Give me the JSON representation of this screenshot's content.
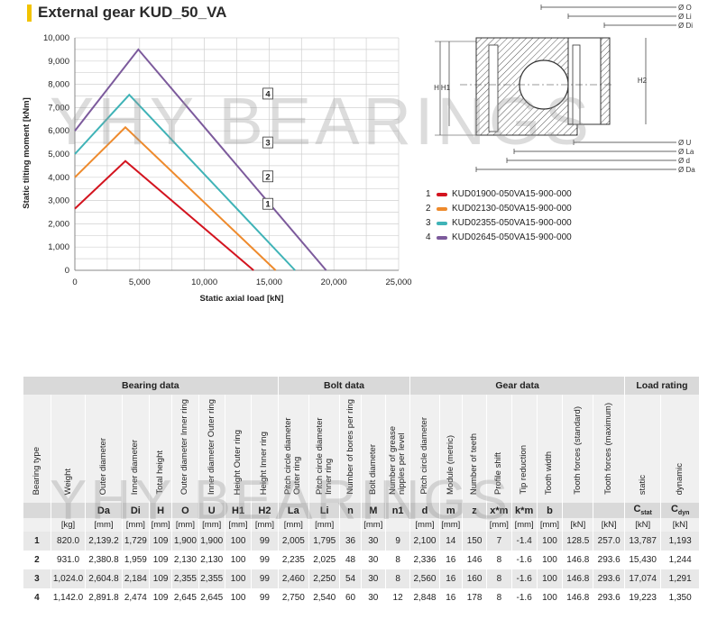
{
  "title": "External gear KUD_50_VA",
  "watermark": "YHY BEARINGS",
  "chart_data": {
    "type": "line",
    "xlabel": "Static axial load [kN]",
    "ylabel": "Static tilting moment [kNm]",
    "xlim": [
      0,
      25000
    ],
    "ylim": [
      0,
      10000
    ],
    "xticks": [
      "0",
      "5,000",
      "10,000",
      "15,000",
      "20,000",
      "25,000"
    ],
    "yticks": [
      "0",
      "1,000",
      "2,000",
      "3,000",
      "4,000",
      "5,000",
      "6,000",
      "7,000",
      "8,000",
      "9,000",
      "10,000"
    ],
    "grid": true,
    "series": [
      {
        "name": "1",
        "color": "#d3141f",
        "points": [
          [
            0,
            2650
          ],
          [
            3900,
            4700
          ],
          [
            13800,
            0
          ]
        ],
        "label_at": [
          7700,
          2860
        ]
      },
      {
        "name": "2",
        "color": "#ee8a2c",
        "points": [
          [
            0,
            4000
          ],
          [
            3900,
            6150
          ],
          [
            15500,
            0
          ]
        ],
        "label_at": [
          7700,
          4040
        ]
      },
      {
        "name": "3",
        "color": "#3fb3b7",
        "points": [
          [
            0,
            5000
          ],
          [
            4200,
            7550
          ],
          [
            17000,
            0
          ]
        ],
        "label_at": [
          7700,
          5500
        ]
      },
      {
        "name": "4",
        "color": "#7c5a9c",
        "points": [
          [
            0,
            6000
          ],
          [
            4900,
            9500
          ],
          [
            19400,
            0
          ]
        ],
        "label_at": [
          7700,
          7600
        ]
      }
    ]
  },
  "legend": [
    {
      "num": "1",
      "color": "#d3141f",
      "label": "KUD01900-050VA15-900-000"
    },
    {
      "num": "2",
      "color": "#ee8a2c",
      "label": "KUD02130-050VA15-900-000"
    },
    {
      "num": "3",
      "color": "#3fb3b7",
      "label": "KUD02355-050VA15-900-000"
    },
    {
      "num": "4",
      "color": "#7c5a9c",
      "label": "KUD02645-050VA15-900-000"
    }
  ],
  "drawing": {
    "labels_right": [
      "Ø O",
      "Ø Li",
      "Ø Di",
      "Ø U",
      "Ø La",
      "Ø d",
      "Ø Da"
    ],
    "labels_left": [
      "H",
      "H1"
    ],
    "label_h2": "H2"
  },
  "table": {
    "groups": [
      "Bearing data",
      "Bolt data",
      "Gear data",
      "Load rating"
    ],
    "headers": [
      "Bearing type",
      "Weight",
      "Outer diameter",
      "Inner diameter",
      "Total height",
      "Outer diameter Inner ring",
      "Inner diameter Outer ring",
      "Height Outer ring",
      "Height Inner ring",
      "Pitch circle diameter Outer ring",
      "Pitch circle diameter Inner ring",
      "Number of bores per ring",
      "Bolt diameter",
      "Number of grease nipples per level",
      "Pitch circle diameter",
      "Module (metric)",
      "Number of teeth",
      "Profile shift",
      "Tip reduction",
      "Tooth width",
      "Tooth forces (standard)",
      "Tooth forces (maximum)",
      "static",
      "dynamic"
    ],
    "symbols": [
      "",
      "",
      "Da",
      "Di",
      "H",
      "O",
      "U",
      "H1",
      "H2",
      "La",
      "Li",
      "n",
      "M",
      "n1",
      "d",
      "m",
      "z",
      "x*m",
      "k*m",
      "b",
      "",
      "",
      "Cstat",
      "Cdyn"
    ],
    "units": [
      "",
      "[kg]",
      "[mm]",
      "[mm]",
      "[mm]",
      "[mm]",
      "[mm]",
      "[mm]",
      "[mm]",
      "[mm]",
      "[mm]",
      "",
      "[mm]",
      "",
      "[mm]",
      "[mm]",
      "",
      "[mm]",
      "[mm]",
      "[mm]",
      "[kN]",
      "[kN]",
      "[kN]",
      "[kN]"
    ],
    "rows": [
      [
        "1",
        "820.0",
        "2,139.2",
        "1,729",
        "109",
        "1,900",
        "1,900",
        "100",
        "99",
        "2,005",
        "1,795",
        "36",
        "30",
        "9",
        "2,100",
        "14",
        "150",
        "7",
        "-1.4",
        "100",
        "128.5",
        "257.0",
        "13,787",
        "1,193"
      ],
      [
        "2",
        "931.0",
        "2,380.8",
        "1,959",
        "109",
        "2,130",
        "2,130",
        "100",
        "99",
        "2,235",
        "2,025",
        "48",
        "30",
        "8",
        "2,336",
        "16",
        "146",
        "8",
        "-1.6",
        "100",
        "146.8",
        "293.6",
        "15,430",
        "1,244"
      ],
      [
        "3",
        "1,024.0",
        "2,604.8",
        "2,184",
        "109",
        "2,355",
        "2,355",
        "100",
        "99",
        "2,460",
        "2,250",
        "54",
        "30",
        "8",
        "2,560",
        "16",
        "160",
        "8",
        "-1.6",
        "100",
        "146.8",
        "293.6",
        "17,074",
        "1,291"
      ],
      [
        "4",
        "1,142.0",
        "2,891.8",
        "2,474",
        "109",
        "2,645",
        "2,645",
        "100",
        "99",
        "2,750",
        "2,540",
        "60",
        "30",
        "12",
        "2,848",
        "16",
        "178",
        "8",
        "-1.6",
        "100",
        "146.8",
        "293.6",
        "19,223",
        "1,350"
      ]
    ]
  }
}
